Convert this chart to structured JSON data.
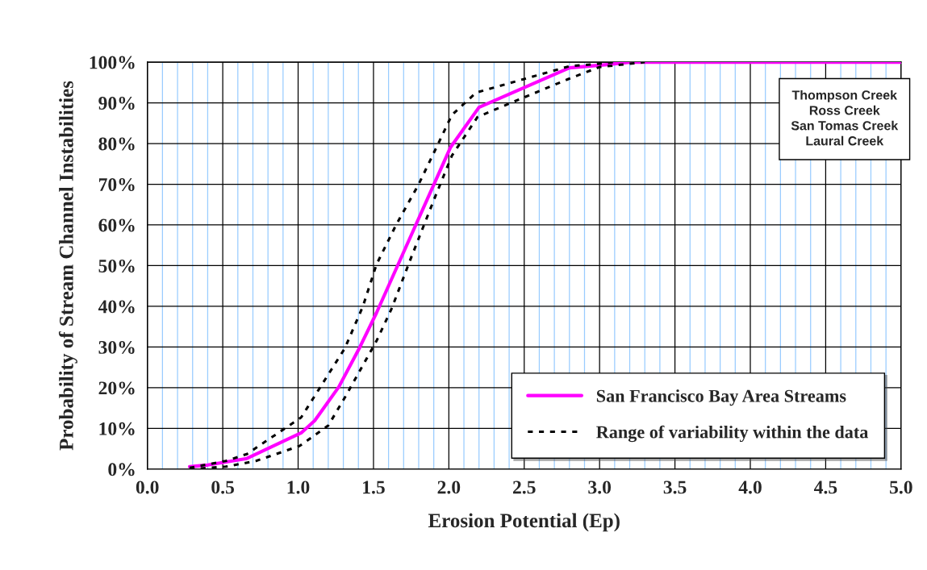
{
  "chart_data": {
    "type": "line",
    "xlabel": "Erosion Potential (Ep)",
    "ylabel": "Probability of Stream Channel Instabilities",
    "series": [
      {
        "name": "San Francisco Bay Area Streams",
        "color": "#ff00ff",
        "line_style": "solid",
        "x": [
          0.28,
          0.4,
          0.66,
          1.02,
          1.11,
          1.27,
          1.41,
          1.52,
          2.01,
          2.2,
          2.8,
          3.05,
          3.2,
          5.0
        ],
        "values": [
          0.6,
          1,
          2.6,
          8.9,
          11.9,
          20.2,
          30,
          38.4,
          79,
          88.9,
          98.6,
          99.4,
          100,
          100
        ]
      },
      {
        "name": "Range of variability within the data",
        "color": "#000000",
        "line_style": "dotted",
        "x": [
          0.28,
          0.52,
          0.66,
          1.02,
          1.31,
          1.43,
          1.52,
          1.65,
          1.8,
          1.93,
          2.02,
          2.18,
          2.8,
          3.0,
          3.1
        ],
        "values": [
          0.3,
          2,
          3.7,
          12.7,
          29.7,
          40,
          50.3,
          60,
          70,
          80,
          87,
          92.5,
          99,
          99.6,
          100
        ]
      },
      {
        "color": "#000000",
        "line_style": "dotted",
        "x": [
          0.28,
          0.52,
          0.72,
          1.01,
          1.2,
          1.31,
          1.52,
          1.62,
          1.75,
          1.91,
          2.02,
          2.19,
          2.38,
          2.79,
          3.0,
          3.3
        ],
        "values": [
          0,
          0.6,
          2,
          5.7,
          10.7,
          17.6,
          31.5,
          39.4,
          52,
          67,
          77,
          86.5,
          89.5,
          95.8,
          98.8,
          100
        ]
      }
    ],
    "xlim": [
      0,
      5
    ],
    "ylim": [
      0,
      100
    ],
    "xticks": [
      {
        "value": 0,
        "label": "0.0"
      },
      {
        "value": 0.1,
        "label": null
      },
      {
        "value": 0.2,
        "label": null
      },
      {
        "value": 0.3,
        "label": null
      },
      {
        "value": 0.4,
        "label": null
      },
      0.5,
      {
        "value": 0.6,
        "label": null
      },
      {
        "value": 0.7,
        "label": null
      },
      {
        "value": 0.8,
        "label": null
      },
      {
        "value": 0.9,
        "label": null
      },
      {
        "value": 1,
        "label": "1.0"
      },
      {
        "value": 1.1,
        "label": null
      },
      {
        "value": 1.2,
        "label": null
      },
      {
        "value": 1.3,
        "label": null
      },
      {
        "value": 1.4,
        "label": null
      },
      1.5,
      {
        "value": 1.6,
        "label": null
      },
      {
        "value": 1.7,
        "label": null
      },
      {
        "value": 1.8,
        "label": null
      },
      {
        "value": 1.9,
        "label": null
      },
      {
        "value": 2,
        "label": "2.0"
      },
      {
        "value": 2.1,
        "label": null
      },
      {
        "value": 2.2,
        "label": null
      },
      {
        "value": 2.3,
        "label": null
      },
      {
        "value": 2.4,
        "label": null
      },
      2.5,
      {
        "value": 2.6,
        "label": null
      },
      {
        "value": 2.7,
        "label": null
      },
      {
        "value": 2.8,
        "label": null
      },
      {
        "value": 2.9,
        "label": null
      },
      {
        "value": 3,
        "label": "3.0"
      },
      {
        "value": 3.1,
        "label": null
      },
      {
        "value": 3.2,
        "label": null
      },
      {
        "value": 3.3,
        "label": null
      },
      {
        "value": 3.4,
        "label": null
      },
      3.5,
      {
        "value": 3.6,
        "label": null
      },
      {
        "value": 3.7,
        "label": null
      },
      {
        "value": 3.8,
        "label": null
      },
      {
        "value": 3.9,
        "label": null
      },
      {
        "value": 4,
        "label": "4.0"
      },
      {
        "value": 4.1,
        "label": null
      },
      {
        "value": 4.2,
        "label": null
      },
      {
        "value": 4.3,
        "label": null
      },
      {
        "value": 4.4,
        "label": null
      },
      4.5,
      {
        "value": 4.6,
        "label": null
      },
      {
        "value": 4.7,
        "label": null
      },
      {
        "value": 4.8,
        "label": null
      },
      {
        "value": 4.9,
        "label": null
      },
      {
        "value": 5,
        "label": "5.0"
      }
    ],
    "yticks": [
      {
        "value": 0,
        "label": "0%"
      },
      {
        "value": 10,
        "label": "10%"
      },
      {
        "value": 20,
        "label": "20%"
      },
      {
        "value": 30,
        "label": "30%"
      },
      {
        "value": 40,
        "label": "40%"
      },
      {
        "value": 50,
        "label": "50%"
      },
      {
        "value": 60,
        "label": "60%"
      },
      {
        "value": 70,
        "label": "70%"
      },
      {
        "value": 80,
        "label": "80%"
      },
      {
        "value": 90,
        "label": "90%"
      },
      {
        "value": 100,
        "label": "100%"
      }
    ],
    "grid": true,
    "legend": "bottom right",
    "marker": "none",
    "annotations": [
      "Thompson Creek",
      "Ross Creek",
      "San Tomas Creek",
      "Laural Creek"
    ]
  }
}
